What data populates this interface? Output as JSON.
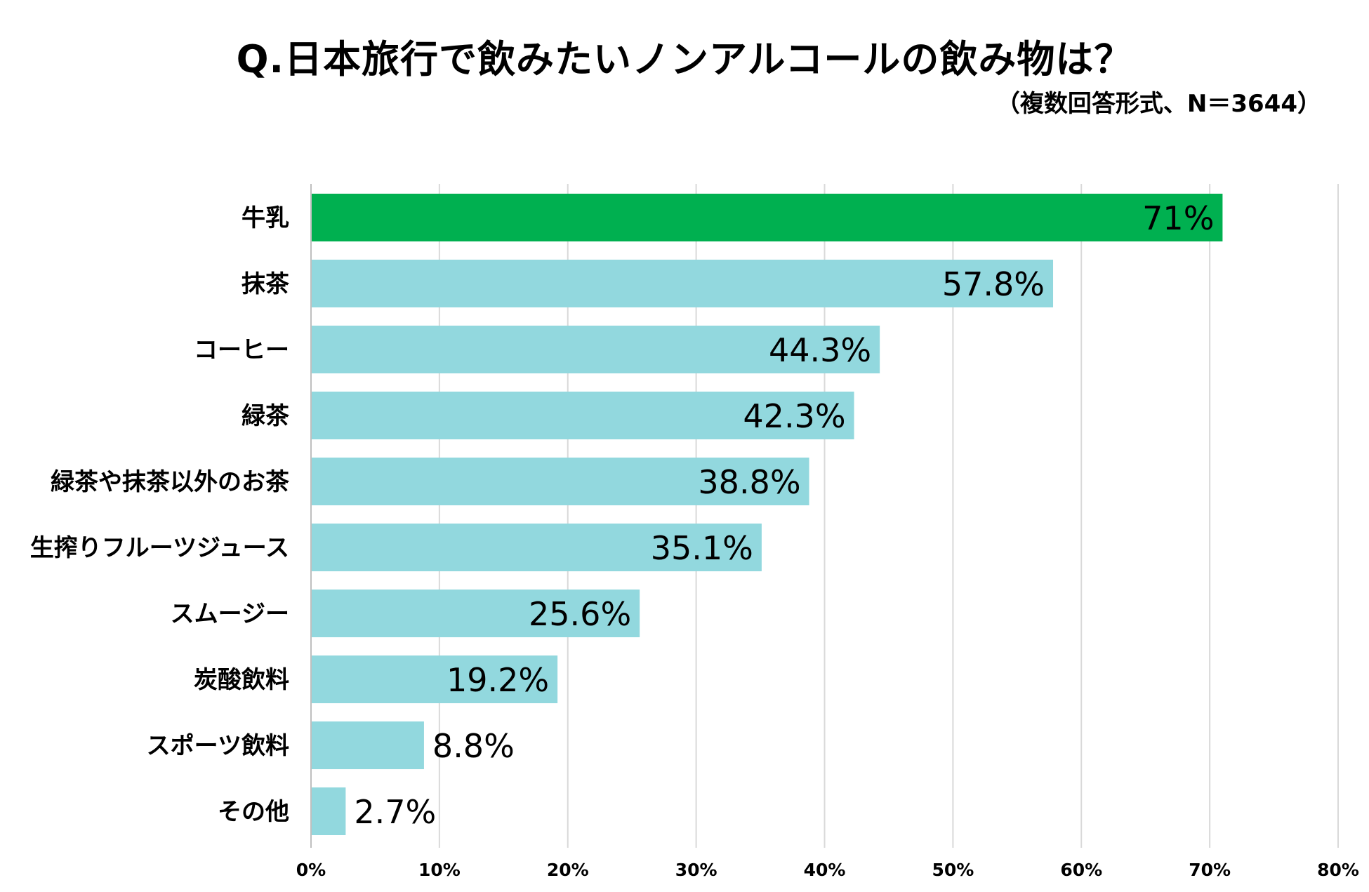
{
  "chart_data": {
    "type": "bar",
    "orientation": "horizontal",
    "title": "Q.日本旅行で飲みたいノンアルコールの飲み物は？",
    "subtitle": "（複数回答形式、N＝3644）",
    "categories": [
      "牛乳",
      "抹茶",
      "コーヒー",
      "緑茶",
      "緑茶や抹茶以外のお茶",
      "生搾りフルーツジュース",
      "スムージー",
      "炭酸飲料",
      "スポーツ飲料",
      "その他"
    ],
    "values": [
      71,
      57.8,
      44.3,
      42.3,
      38.8,
      35.1,
      25.6,
      19.2,
      8.8,
      2.7
    ],
    "value_labels": [
      "71%",
      "57.8%",
      "44.3%",
      "42.3%",
      "38.8%",
      "35.1%",
      "25.6%",
      "19.2%",
      "8.8%",
      "2.7%"
    ],
    "xlim": [
      0,
      80
    ],
    "x_ticks": [
      0,
      10,
      20,
      30,
      40,
      50,
      60,
      70,
      80
    ],
    "x_tick_labels": [
      "0%",
      "10%",
      "20%",
      "30%",
      "40%",
      "50%",
      "60%",
      "70%",
      "80%"
    ],
    "xlabel": "",
    "ylabel": "",
    "grid": true,
    "highlight_index": 0,
    "colors": {
      "highlight": "#00B050",
      "bar": "#92D8DE",
      "grid": "#D9D9D9",
      "axis": "#BFBFBF"
    }
  }
}
